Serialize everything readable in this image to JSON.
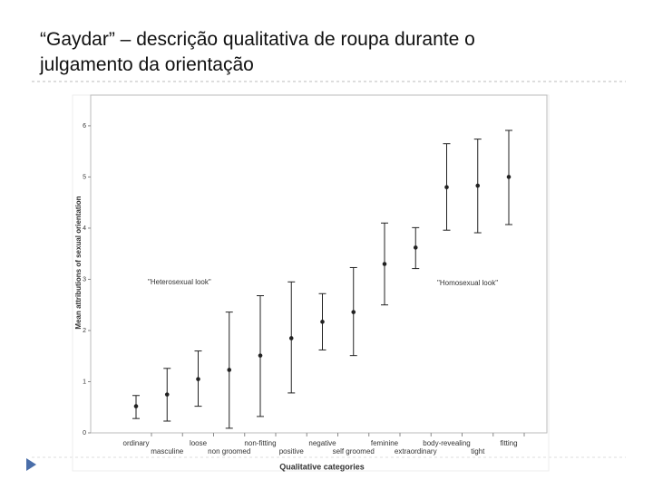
{
  "slide_title": "“Gaydar” – descrição qualitativa de roupa durante o julgamento da orientação",
  "chart_data": {
    "type": "errorbar",
    "x_label": "Qualitative categories",
    "y_label": "Mean attributions of sexual orientation",
    "annotations": [
      "\"Heterosexual look\"",
      "\"Homosexual look\""
    ],
    "categories": [
      "ordinary",
      "masculine",
      "loose",
      "non groomed",
      "non-fitting",
      "positive",
      "negative",
      "self groomed",
      "feminine",
      "extraordinary",
      "body-revealing",
      "tight",
      "fitting"
    ],
    "values": [
      0.52,
      0.75,
      1.05,
      1.23,
      1.51,
      1.85,
      2.17,
      2.36,
      3.3,
      3.62,
      4.8,
      4.83,
      5.0
    ],
    "lower": [
      0.28,
      0.23,
      0.52,
      0.09,
      0.32,
      0.78,
      1.62,
      1.51,
      2.5,
      3.21,
      3.96,
      3.91,
      4.07
    ],
    "upper": [
      0.73,
      1.26,
      1.6,
      2.36,
      2.68,
      2.95,
      2.72,
      3.23,
      4.1,
      4.01,
      5.65,
      5.74,
      5.91
    ],
    "color": "#222222",
    "ylim": [
      0,
      6.6
    ],
    "yticks": [
      0,
      1,
      2,
      3,
      4,
      5,
      6
    ]
  }
}
